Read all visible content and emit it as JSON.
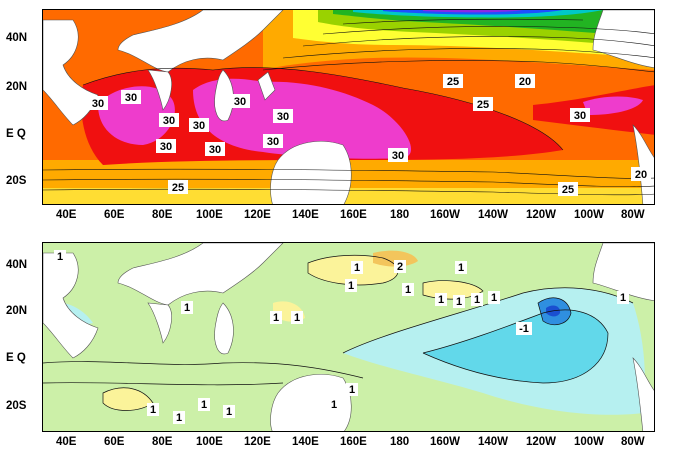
{
  "axes": {
    "x_labels": [
      "40E",
      "60E",
      "80E",
      "100E",
      "120E",
      "140E",
      "160E",
      "180",
      "160W",
      "140W",
      "120W",
      "100W",
      "80W"
    ],
    "y_labels": [
      "40N",
      "20N",
      "E Q",
      "20S"
    ]
  },
  "top_panel": {
    "contour_labels": [
      "30",
      "30",
      "30",
      "30",
      "30",
      "30",
      "30",
      "30",
      "30",
      "30",
      "30",
      "25",
      "25",
      "25",
      "20",
      "20",
      "30"
    ],
    "palette": {
      "violet": "#8a2be2",
      "blue": "#1e50ff",
      "cyan": "#00c8c8",
      "green": "#22b422",
      "yellowgreen": "#9ad200",
      "yellow": "#ffff33",
      "orange": "#ffaa00",
      "darkorange": "#ff6a00",
      "red": "#f01010",
      "magenta": "#ee3ccc"
    }
  },
  "bottom_panel": {
    "contour_labels": [
      "1",
      "1",
      "1",
      "1",
      "1",
      "2",
      "1",
      "1",
      "1",
      "1",
      "1",
      "-1",
      "1",
      "1",
      "1",
      "1",
      "1",
      "1",
      "1",
      "1",
      "1"
    ],
    "palette": {
      "lightgreen": "#ccf0a8",
      "yellow": "#fbf39a",
      "orange": "#f3c55c",
      "lightcyan": "#b6f0f0",
      "cyan": "#62d8ea",
      "blue": "#2f8fe0",
      "deepblue": "#1a4fd0"
    }
  }
}
